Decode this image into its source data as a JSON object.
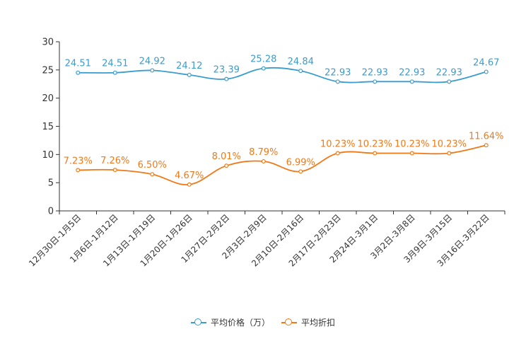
{
  "chart_data": {
    "type": "line",
    "categories": [
      "12月30日-1月5日",
      "1月6日-1月12日",
      "1月13日-1月19日",
      "1月20日-1月26日",
      "1月27日-2月2日",
      "2月3日-2月9日",
      "2月10日-2月16日",
      "2月17日-2月23日",
      "2月24日-3月1日",
      "3月2日-3月8日",
      "3月9日-3月15日",
      "3月16日-3月22日"
    ],
    "ylim": [
      0,
      30
    ],
    "yticks": [
      "0",
      "5",
      "10",
      "15",
      "20",
      "25",
      "30"
    ],
    "series": [
      {
        "name": "平均价格（万）",
        "color": "#3a9ccf",
        "values": [
          24.51,
          24.51,
          24.92,
          24.12,
          23.39,
          25.28,
          24.84,
          22.93,
          22.93,
          22.93,
          22.93,
          24.67
        ],
        "labels": [
          "24.51",
          "24.51",
          "24.92",
          "24.12",
          "23.39",
          "25.28",
          "24.84",
          "22.93",
          "22.93",
          "22.93",
          "22.93",
          "24.67"
        ]
      },
      {
        "name": "平均折扣",
        "color": "#f07918",
        "values": [
          7.23,
          7.26,
          6.5,
          4.67,
          8.01,
          8.79,
          6.99,
          10.23,
          10.23,
          10.23,
          10.23,
          11.64
        ],
        "labels": [
          "7.23%",
          "7.26%",
          "6.50%",
          "4.67%",
          "8.01%",
          "8.79%",
          "6.99%",
          "10.23%",
          "10.23%",
          "10.23%",
          "10.23%",
          "11.64%"
        ]
      }
    ]
  },
  "legend": {
    "price_label": "平均价格（万）",
    "discount_label": "平均折扣"
  }
}
